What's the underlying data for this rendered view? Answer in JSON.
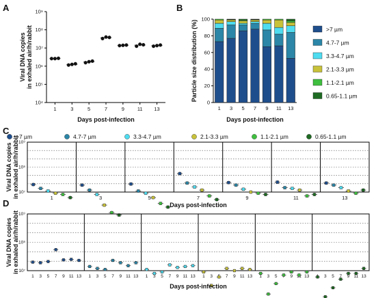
{
  "panels": [
    "A",
    "B",
    "C",
    "D"
  ],
  "colors": {
    ">7 µm": "#1f4e8c",
    "4.7-7 µm": "#2b86a7",
    "3.3-4.7 µm": "#4fdcf0",
    "2.1-3.3 µm": "#c8c23a",
    "1.1-2.1 µm": "#3fbf3f",
    "0.65-1.1 µm": "#1e6b23"
  },
  "chart_data": [
    {
      "id": "A",
      "type": "scatter",
      "title": "",
      "xlabel": "Days post-infection",
      "ylabel": [
        "Viral DNA copies",
        "in exhaled air/h/rabbit"
      ],
      "yscale": "log",
      "ylim": [
        10000,
        1000000000
      ],
      "yticks": [
        {
          "value": 10000,
          "label": "10⁴"
        },
        {
          "value": 100000,
          "label": "10⁵"
        },
        {
          "value": 1000000,
          "label": "10⁶"
        },
        {
          "value": 10000000,
          "label": "10⁷"
        },
        {
          "value": 100000000,
          "label": "10⁸"
        },
        {
          "value": 1000000000,
          "label": "10⁹"
        }
      ],
      "categories": [
        "1",
        "3",
        "5",
        "7",
        "9",
        "11",
        "13"
      ],
      "series": [
        {
          "replicates": [
            [
              2600000,
              2600000,
              2700000
            ],
            [
              1150000,
              1250000,
              1350000
            ],
            [
              1550000,
              1750000,
              1900000
            ],
            [
              33000000,
              40000000,
              38000000
            ],
            [
              13500000,
              14000000,
              14500000
            ],
            [
              12500000,
              16000000,
              15000000
            ],
            [
              12500000,
              13500000,
              14500000
            ]
          ]
        }
      ]
    },
    {
      "id": "B",
      "type": "bar",
      "stacked": true,
      "xlabel": "Days post-infection",
      "ylabel": "Particle size distribution (%)",
      "ylim": [
        0,
        100
      ],
      "yticks": [
        0,
        20,
        40,
        60,
        80,
        100
      ],
      "categories": [
        "1",
        "3",
        "5",
        "7",
        "9",
        "11",
        "13"
      ],
      "legend_position": "right",
      "series": [
        {
          "name": ">7 µm",
          "values": [
            73,
            77,
            86,
            88,
            67,
            68,
            53
          ]
        },
        {
          "name": "4.7-7 µm",
          "values": [
            16,
            16,
            7,
            7,
            20,
            14,
            31
          ]
        },
        {
          "name": "3.3-4.7 µm",
          "values": [
            6,
            4,
            2,
            2,
            8,
            8,
            8
          ]
        },
        {
          "name": "2.1-3.3 µm",
          "values": [
            4,
            2,
            3,
            2,
            4,
            9,
            4
          ]
        },
        {
          "name": "1.1-2.1 µm",
          "values": [
            1,
            0.5,
            1,
            0.5,
            1,
            1,
            2
          ]
        },
        {
          "name": "0.65-1.1 µm",
          "values": [
            0,
            0.5,
            1,
            0.5,
            0,
            0,
            2
          ]
        }
      ]
    },
    {
      "id": "C",
      "type": "scatter",
      "xlabel": "Days post-infection",
      "ylabel": [
        "Viral DNA copies",
        "in exhaled air/h/rabbit"
      ],
      "yscale": "log",
      "ylim": [
        10000000,
        1000000000
      ],
      "yticks": [
        {
          "value": 10000000,
          "label": "10⁷"
        },
        {
          "value": 100000000,
          "label": "10⁸"
        },
        {
          "value": 1000000000,
          "label": "10⁹"
        }
      ],
      "legend_position": "top",
      "groups": [
        "1",
        "3",
        "5",
        "7",
        "9",
        "11",
        "13"
      ],
      "series_names": [
        ">7 µm",
        "4.7-7 µm",
        "3.3-4.7 µm",
        "2.1-3.3 µm",
        "1.1-2.1 µm",
        "0.65-1.1 µm"
      ],
      "values": [
        [
          20000000,
          14000000,
          11000000,
          9000000,
          8000000,
          6000000
        ],
        [
          19000000,
          12000000,
          8000000,
          3000000,
          1500000,
          1200000
        ],
        [
          21000000,
          11000000,
          9000000,
          6000000,
          3500000,
          2500000
        ],
        [
          55000000,
          23000000,
          16000000,
          12000000,
          7000000,
          5000000
        ],
        [
          24000000,
          19000000,
          13000000,
          10000000,
          9000000,
          8000000
        ],
        [
          25000000,
          15000000,
          14000000,
          12000000,
          7000000,
          8000000
        ],
        [
          23000000,
          19000000,
          15000000,
          11000000,
          9000000,
          12000000
        ]
      ]
    },
    {
      "id": "D",
      "type": "scatter",
      "xlabel": "Days post-infection",
      "ylabel": [
        "Viral DNA copies",
        "in exhaled air/h/rabbit"
      ],
      "yscale": "log",
      "ylim": [
        10000000,
        1000000000
      ],
      "yticks": [
        {
          "value": 10000000,
          "label": "10⁷"
        },
        {
          "value": 100000000,
          "label": "10⁸"
        },
        {
          "value": 1000000000,
          "label": "10⁹"
        }
      ],
      "groups": [
        ">7 µm",
        "4.7-7 µm",
        "3.3-4.7 µm",
        "2.1-3.3 µm",
        "1.1-2.1 µm",
        "0.65-1.1 µm"
      ],
      "categories": [
        "1",
        "3",
        "5",
        "7",
        "9",
        "11",
        "13"
      ],
      "values": [
        [
          20000000,
          19000000,
          21000000,
          55000000,
          24000000,
          25000000,
          23000000
        ],
        [
          14000000,
          12000000,
          11000000,
          23000000,
          19000000,
          15000000,
          19000000
        ],
        [
          11000000,
          8000000,
          9000000,
          16000000,
          13000000,
          14000000,
          15000000
        ],
        [
          9000000,
          3000000,
          6000000,
          12000000,
          10000000,
          12000000,
          11000000
        ],
        [
          8000000,
          1500000,
          3500000,
          7000000,
          9000000,
          7000000,
          9000000
        ],
        [
          6000000,
          1200000,
          2500000,
          5000000,
          8000000,
          8000000,
          12000000
        ]
      ]
    }
  ]
}
